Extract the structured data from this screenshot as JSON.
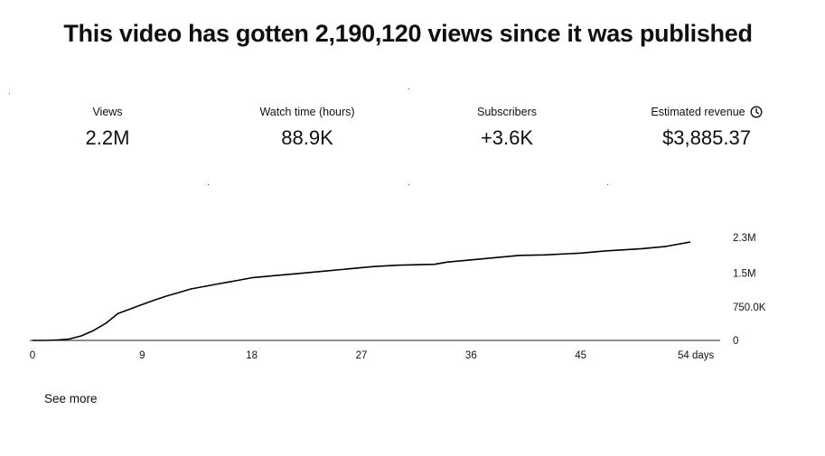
{
  "headline": "This video has gotten 2,190,120 views since it was published",
  "metrics": [
    {
      "label": "Views",
      "value": "2.2M"
    },
    {
      "label": "Watch time (hours)",
      "value": "88.9K"
    },
    {
      "label": "Subscribers",
      "value": "+3.6K"
    },
    {
      "label": "Estimated revenue",
      "value": "$3,885.37",
      "icon": "clock-icon"
    }
  ],
  "chart_data": {
    "type": "line",
    "title": "",
    "xlabel": "",
    "ylabel": "",
    "x_ticks": [
      "0",
      "9",
      "18",
      "27",
      "36",
      "45",
      "54 days"
    ],
    "x_tick_values": [
      0,
      9,
      18,
      27,
      36,
      45,
      54
    ],
    "y_ticks": [
      "0",
      "750.0K",
      "1.5M",
      "2.3M"
    ],
    "y_tick_values": [
      0,
      750000,
      1500000,
      2300000
    ],
    "xlim": [
      0,
      54
    ],
    "ylim": [
      0,
      2300000
    ],
    "grid": false,
    "legend": "none",
    "line_color": "#000000",
    "series": [
      {
        "x": [
          0,
          1,
          2,
          3,
          4,
          5,
          6,
          7,
          8,
          9,
          10,
          11,
          12,
          13,
          14,
          15,
          16,
          17,
          18,
          20,
          22,
          24,
          26,
          28,
          30,
          33,
          34,
          36,
          38,
          40,
          42,
          45,
          47,
          50,
          52,
          54
        ],
        "y": [
          0,
          0,
          10000,
          30000,
          100000,
          220000,
          380000,
          600000,
          700000,
          800000,
          900000,
          990000,
          1070000,
          1150000,
          1200000,
          1250000,
          1300000,
          1350000,
          1400000,
          1450000,
          1500000,
          1550000,
          1600000,
          1650000,
          1680000,
          1700000,
          1750000,
          1800000,
          1850000,
          1900000,
          1910000,
          1950000,
          2000000,
          2050000,
          2100000,
          2200000
        ]
      }
    ]
  },
  "see_more": "See more"
}
